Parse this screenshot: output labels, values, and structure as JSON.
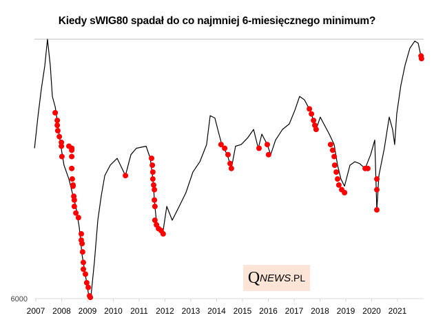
{
  "chart_data": {
    "type": "line",
    "title": "Kiedy sWIG80 spadał do co najmniej 6-miesięcznego minimum?",
    "xlabel": "",
    "ylabel": "",
    "y_scale": "log",
    "ylim": [
      6000,
      24000
    ],
    "xlim": [
      2007,
      2022
    ],
    "y_tick_labels": [
      "6000"
    ],
    "x_tick_labels": [
      "2007",
      "2008",
      "2009",
      "2010",
      "2011",
      "2012",
      "2013",
      "2014",
      "2015",
      "2016",
      "2017",
      "2018",
      "2019",
      "2020",
      "2021"
    ],
    "grid": "top border line only",
    "legend": "none",
    "series": [
      {
        "name": "sWIG80",
        "color": "#000000",
        "kind": "line",
        "x": [
          2006.95,
          2007.08,
          2007.21,
          2007.35,
          2007.45,
          2007.56,
          2007.64,
          2007.75,
          2007.83,
          2007.96,
          2008.09,
          2008.28,
          2008.41,
          2008.55,
          2008.68,
          2008.79,
          2008.92,
          2009.05,
          2009.13,
          2009.27,
          2009.4,
          2009.53,
          2009.67,
          2009.88,
          2010.15,
          2010.47,
          2010.68,
          2010.89,
          2011.27,
          2011.43,
          2011.53,
          2011.61,
          2011.69,
          2011.8,
          2011.91,
          2012.07,
          2012.28,
          2012.55,
          2012.81,
          2013.08,
          2013.35,
          2013.61,
          2013.75,
          2013.93,
          2014.09,
          2014.2,
          2014.41,
          2014.57,
          2014.73,
          2014.95,
          2015.21,
          2015.43,
          2015.61,
          2015.75,
          2015.96,
          2016.09,
          2016.28,
          2016.55,
          2016.81,
          2017.03,
          2017.21,
          2017.4,
          2017.61,
          2017.75,
          2017.88,
          2018.01,
          2018.15,
          2018.36,
          2018.55,
          2018.68,
          2018.81,
          2018.95,
          2019.16,
          2019.35,
          2019.53,
          2019.75,
          2019.96,
          2020.12,
          2020.2,
          2020.28,
          2020.49,
          2020.68,
          2020.81,
          2020.89,
          2020.97,
          2021.13,
          2021.29,
          2021.48,
          2021.67,
          2021.8,
          2021.93
        ],
        "y": [
          13400,
          15830,
          18350,
          20860,
          24000,
          20860,
          17680,
          16730,
          15550,
          13670,
          12240,
          11370,
          10570,
          9820,
          8790,
          7590,
          6800,
          6090,
          6040,
          7320,
          9120,
          10370,
          11580,
          12240,
          12700,
          11580,
          12950,
          13400,
          13550,
          12700,
          11370,
          9820,
          8790,
          8630,
          8480,
          9820,
          9120,
          9820,
          10570,
          11800,
          12470,
          13670,
          15950,
          15750,
          14450,
          13670,
          12950,
          12030,
          13550,
          13670,
          14190,
          14820,
          13400,
          14450,
          13670,
          12950,
          14000,
          14820,
          15260,
          16430,
          17680,
          17350,
          16430,
          15550,
          15000,
          15830,
          15260,
          14450,
          13670,
          12240,
          11370,
          10940,
          12240,
          12470,
          12350,
          12030,
          12950,
          14000,
          9640,
          11580,
          13400,
          15830,
          14820,
          13670,
          16100,
          18750,
          20860,
          22870,
          23760,
          23500,
          21640
        ]
      },
      {
        "name": "6-month low",
        "color": "#ff0000",
        "kind": "markers",
        "x": [
          2007.75,
          2007.83,
          2007.83,
          2007.85,
          2007.91,
          2007.99,
          2007.99,
          2008.01,
          2008.28,
          2008.39,
          2008.39,
          2008.39,
          2008.39,
          2008.41,
          2008.44,
          2008.44,
          2008.47,
          2008.49,
          2008.49,
          2008.55,
          2008.65,
          2008.76,
          2008.76,
          2008.79,
          2008.81,
          2008.84,
          2008.84,
          2008.92,
          2008.97,
          2009.03,
          2009.08,
          2009.11,
          2010.47,
          2011.48,
          2011.51,
          2011.53,
          2011.53,
          2011.56,
          2011.59,
          2011.59,
          2011.61,
          2011.61,
          2011.67,
          2011.75,
          2011.85,
          2011.93,
          2014.17,
          2014.31,
          2014.44,
          2014.52,
          2014.57,
          2015.64,
          2015.96,
          2016.01,
          2017.59,
          2017.67,
          2017.75,
          2017.8,
          2017.85,
          2018.41,
          2018.49,
          2018.55,
          2018.57,
          2018.63,
          2018.68,
          2018.73,
          2018.84,
          2018.95,
          2019.75,
          2019.85,
          2020.2,
          2020.2,
          2020.2,
          2021.91,
          2021.93
        ],
        "y": [
          16200,
          15550,
          15150,
          14720,
          14260,
          13830,
          13550,
          12820,
          13550,
          13400,
          13260,
          12820,
          12030,
          11370,
          11010,
          10940,
          10370,
          10160,
          9820,
          9480,
          9250,
          8480,
          8200,
          8050,
          7700,
          7280,
          7020,
          6840,
          6530,
          6370,
          6090,
          6040,
          11580,
          12700,
          12240,
          11800,
          11370,
          11010,
          10740,
          10160,
          9820,
          9120,
          8900,
          8720,
          8630,
          8480,
          13670,
          13400,
          12950,
          12350,
          12030,
          13400,
          13670,
          12950,
          16540,
          16100,
          15550,
          15150,
          14820,
          13670,
          13260,
          12820,
          12240,
          11800,
          11370,
          11010,
          10740,
          10570,
          12030,
          12030,
          11370,
          10740,
          9640,
          21950,
          21640
        ]
      }
    ]
  },
  "watermark": {
    "q": "Q",
    "news": "NEWS",
    "pl": ".PL"
  }
}
